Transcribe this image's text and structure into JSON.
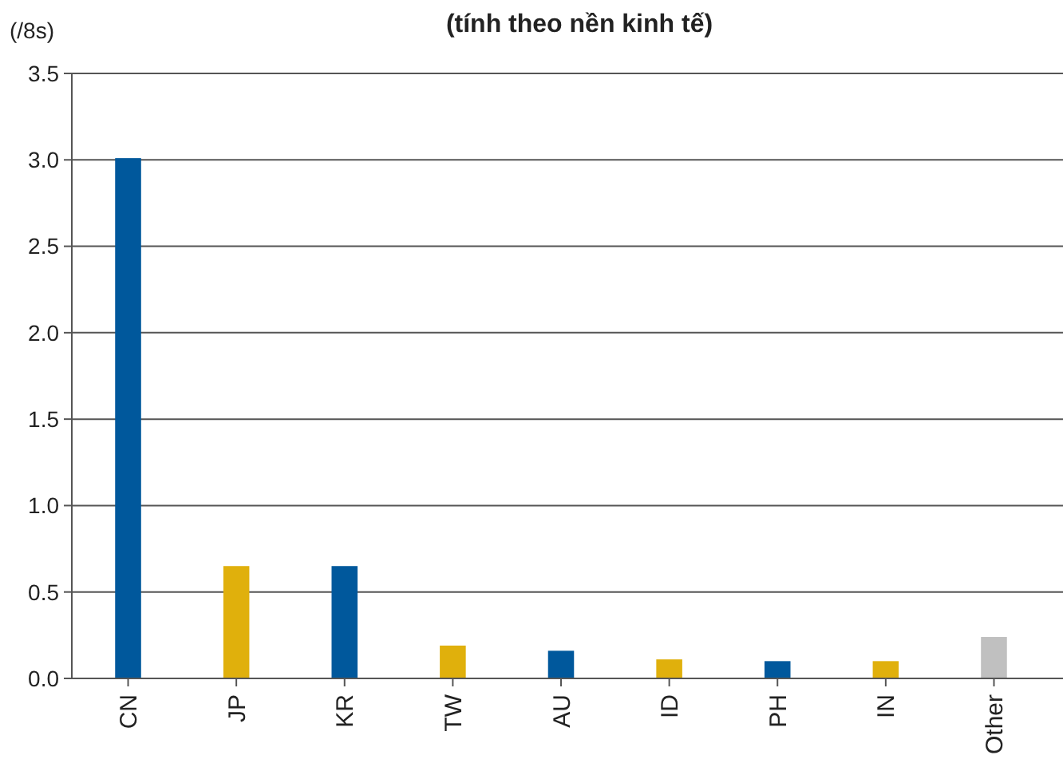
{
  "chart_data": {
    "type": "bar",
    "title": "(tính theo nền kinh tế)",
    "ylabel": "(/8s)",
    "categories": [
      "CN",
      "JP",
      "KR",
      "TW",
      "AU",
      "ID",
      "PH",
      "IN",
      "Other"
    ],
    "values": [
      3.01,
      0.65,
      0.65,
      0.19,
      0.16,
      0.11,
      0.1,
      0.1,
      0.24
    ],
    "colors": [
      "#00589c",
      "#e0b00c",
      "#00589c",
      "#e0b00c",
      "#00589c",
      "#e0b00c",
      "#00589c",
      "#e0b00c",
      "#c0c0c0"
    ],
    "ylim": [
      0,
      3.5
    ],
    "yticks": [
      {
        "value": 0,
        "label": "0.0"
      },
      {
        "value": 0.5,
        "label": "0.5"
      },
      {
        "value": 1,
        "label": "1.0"
      },
      {
        "value": 1.5,
        "label": "1.5"
      },
      {
        "value": 2,
        "label": "2.0"
      },
      {
        "value": 2.5,
        "label": "2.5"
      },
      {
        "value": 3,
        "label": "3.0"
      },
      {
        "value": 3.5,
        "label": "3.5"
      }
    ],
    "grid": "y"
  }
}
